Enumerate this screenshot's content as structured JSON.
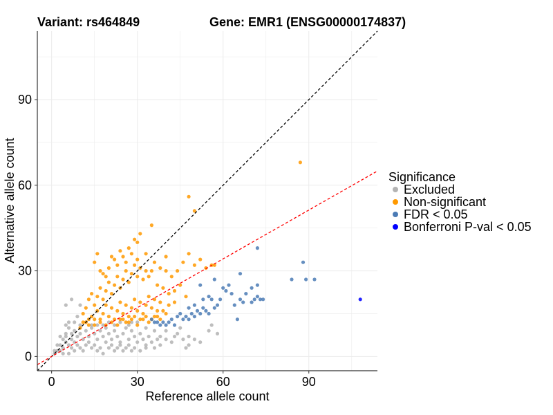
{
  "chart_data": {
    "type": "scatter",
    "title_left": "Variant: rs464849",
    "title_right": "Gene: EMR1 (ENSG00000174837)",
    "xlabel": "Reference allele count",
    "ylabel": "Alternative allele count",
    "xlim": [
      -5,
      114
    ],
    "ylim": [
      -5,
      114
    ],
    "xticks": [
      0,
      30,
      60,
      90
    ],
    "yticks": [
      0,
      30,
      60,
      90
    ],
    "grid": true,
    "legend": {
      "title": "Significance",
      "position": "right",
      "entries": [
        {
          "label": "Excluded",
          "color": "#b3b3b3"
        },
        {
          "label": "Non-significant",
          "color": "#ff9900"
        },
        {
          "label": "FDR < 0.05",
          "color": "#4b7bb5"
        },
        {
          "label": "Bonferroni P-val < 0.05",
          "color": "#0000ff"
        }
      ]
    },
    "reference_lines": [
      {
        "name": "identity",
        "slope": 1,
        "intercept": 0,
        "color": "#000000",
        "dash": true
      },
      {
        "name": "fit",
        "slope": 0.57,
        "intercept": 0,
        "color": "#ff0000",
        "dash": true
      }
    ],
    "series": [
      {
        "name": "Excluded",
        "color": "#b3b3b3",
        "points": [
          [
            2,
            2
          ],
          [
            3,
            4
          ],
          [
            4,
            3
          ],
          [
            5,
            5
          ],
          [
            6,
            4
          ],
          [
            5,
            7
          ],
          [
            7,
            6
          ],
          [
            8,
            9
          ],
          [
            6,
            10
          ],
          [
            5,
            8
          ],
          [
            8,
            5
          ],
          [
            9,
            7
          ],
          [
            10,
            8
          ],
          [
            11,
            6
          ],
          [
            12,
            9
          ],
          [
            13,
            7
          ],
          [
            14,
            10
          ],
          [
            15,
            8
          ],
          [
            16,
            6
          ],
          [
            17,
            9
          ],
          [
            18,
            7
          ],
          [
            19,
            10
          ],
          [
            20,
            8
          ],
          [
            21,
            6
          ],
          [
            22,
            9
          ],
          [
            23,
            7
          ],
          [
            24,
            5
          ],
          [
            25,
            8
          ],
          [
            26,
            10
          ],
          [
            27,
            6
          ],
          [
            28,
            9
          ],
          [
            29,
            7
          ],
          [
            30,
            5
          ],
          [
            31,
            8
          ],
          [
            32,
            6
          ],
          [
            33,
            4
          ],
          [
            34,
            7
          ],
          [
            35,
            5
          ],
          [
            36,
            3
          ],
          [
            37,
            6
          ],
          [
            38,
            4
          ],
          [
            40,
            6
          ],
          [
            42,
            5
          ],
          [
            44,
            8
          ],
          [
            46,
            6
          ],
          [
            48,
            4
          ],
          [
            50,
            6
          ],
          [
            52,
            5
          ],
          [
            12,
            4
          ],
          [
            14,
            3
          ],
          [
            16,
            2
          ],
          [
            18,
            1
          ],
          [
            20,
            3
          ],
          [
            22,
            2
          ],
          [
            24,
            4
          ],
          [
            26,
            3
          ],
          [
            28,
            2
          ],
          [
            10,
            3
          ],
          [
            8,
            2
          ],
          [
            6,
            1
          ],
          [
            4,
            1
          ],
          [
            3,
            2
          ],
          [
            7,
            3
          ],
          [
            11,
            2
          ],
          [
            13,
            5
          ],
          [
            15,
            4
          ],
          [
            17,
            3
          ],
          [
            19,
            5
          ],
          [
            21,
            4
          ],
          [
            23,
            3
          ],
          [
            25,
            2
          ],
          [
            27,
            4
          ],
          [
            29,
            3
          ],
          [
            31,
            2
          ],
          [
            33,
            3
          ],
          [
            9,
            4
          ],
          [
            7,
            8
          ],
          [
            5,
            11
          ],
          [
            6,
            12
          ],
          [
            5,
            18
          ],
          [
            7,
            20
          ],
          [
            10,
            18
          ],
          [
            9,
            14
          ],
          [
            8,
            12
          ],
          [
            4,
            6
          ],
          [
            3,
            7
          ],
          [
            2,
            4
          ],
          [
            1,
            2
          ],
          [
            1,
            1
          ],
          [
            12,
            12
          ],
          [
            14,
            11
          ],
          [
            18,
            11
          ],
          [
            20,
            12
          ],
          [
            24,
            12
          ],
          [
            27,
            11
          ],
          [
            30,
            12
          ],
          [
            10,
            11
          ],
          [
            16,
            11
          ],
          [
            22,
            11
          ],
          [
            28,
            12
          ],
          [
            33,
            10
          ],
          [
            40,
            9
          ],
          [
            43,
            7
          ],
          [
            47,
            3
          ],
          [
            55,
            9
          ],
          [
            56,
            11
          ],
          [
            58,
            8
          ],
          [
            48,
            7
          ],
          [
            45,
            10
          ],
          [
            36,
            9
          ],
          [
            38,
            7
          ]
        ]
      },
      {
        "name": "Non-significant",
        "color": "#ff9900",
        "points": [
          [
            10,
            10
          ],
          [
            12,
            12
          ],
          [
            11,
            15
          ],
          [
            13,
            11
          ],
          [
            14,
            14
          ],
          [
            15,
            13
          ],
          [
            16,
            16
          ],
          [
            17,
            12
          ],
          [
            18,
            15
          ],
          [
            19,
            18
          ],
          [
            20,
            14
          ],
          [
            21,
            17
          ],
          [
            22,
            13
          ],
          [
            23,
            16
          ],
          [
            24,
            19
          ],
          [
            25,
            15
          ],
          [
            26,
            18
          ],
          [
            27,
            14
          ],
          [
            28,
            17
          ],
          [
            29,
            20
          ],
          [
            30,
            16
          ],
          [
            31,
            19
          ],
          [
            32,
            15
          ],
          [
            33,
            18
          ],
          [
            34,
            21
          ],
          [
            35,
            17
          ],
          [
            36,
            20
          ],
          [
            37,
            16
          ],
          [
            38,
            19
          ],
          [
            12,
            17
          ],
          [
            13,
            20
          ],
          [
            14,
            22
          ],
          [
            15,
            18
          ],
          [
            16,
            21
          ],
          [
            17,
            24
          ],
          [
            18,
            20
          ],
          [
            19,
            23
          ],
          [
            20,
            26
          ],
          [
            21,
            22
          ],
          [
            22,
            25
          ],
          [
            23,
            28
          ],
          [
            24,
            24
          ],
          [
            25,
            27
          ],
          [
            26,
            30
          ],
          [
            27,
            26
          ],
          [
            28,
            29
          ],
          [
            29,
            32
          ],
          [
            30,
            28
          ],
          [
            31,
            31
          ],
          [
            32,
            27
          ],
          [
            33,
            30
          ],
          [
            20,
            31
          ],
          [
            22,
            34
          ],
          [
            24,
            37
          ],
          [
            26,
            33
          ],
          [
            28,
            36
          ],
          [
            30,
            34
          ],
          [
            30,
            40
          ],
          [
            33,
            36
          ],
          [
            35,
            30
          ],
          [
            36,
            33
          ],
          [
            38,
            31
          ],
          [
            40,
            30
          ],
          [
            40,
            35
          ],
          [
            42,
            28
          ],
          [
            44,
            30
          ],
          [
            46,
            33
          ],
          [
            48,
            36
          ],
          [
            50,
            32
          ],
          [
            52,
            34
          ],
          [
            54,
            31
          ],
          [
            56,
            32
          ],
          [
            57,
            32
          ],
          [
            48,
            56
          ],
          [
            50,
            51
          ],
          [
            87,
            68
          ],
          [
            15,
            33
          ],
          [
            17,
            30
          ],
          [
            19,
            28
          ],
          [
            21,
            35
          ],
          [
            23,
            32
          ],
          [
            16,
            36
          ],
          [
            18,
            29
          ],
          [
            25,
            35
          ],
          [
            27,
            38
          ],
          [
            29,
            41
          ],
          [
            31,
            43
          ],
          [
            34,
            28
          ],
          [
            37,
            25
          ],
          [
            39,
            24
          ],
          [
            41,
            22
          ],
          [
            43,
            23
          ],
          [
            45,
            25
          ],
          [
            47,
            21
          ],
          [
            35,
            46
          ],
          [
            24,
            13
          ],
          [
            26,
            12
          ],
          [
            28,
            13
          ],
          [
            30,
            11
          ],
          [
            32,
            13
          ],
          [
            34,
            12
          ],
          [
            36,
            14
          ],
          [
            38,
            13
          ],
          [
            40,
            15
          ],
          [
            11,
            12
          ],
          [
            13,
            13
          ],
          [
            15,
            11
          ],
          [
            17,
            13
          ],
          [
            19,
            11
          ],
          [
            21,
            12
          ],
          [
            23,
            11
          ],
          [
            25,
            13
          ],
          [
            27,
            12
          ],
          [
            29,
            14
          ],
          [
            31,
            13
          ],
          [
            33,
            14
          ],
          [
            35,
            13
          ],
          [
            37,
            14
          ],
          [
            39,
            16
          ],
          [
            41,
            18
          ],
          [
            43,
            19
          ]
        ]
      },
      {
        "name": "FDR < 0.05",
        "color": "#4b7bb5",
        "points": [
          [
            35,
            13
          ],
          [
            36,
            12
          ],
          [
            37,
            12
          ],
          [
            38,
            11
          ],
          [
            39,
            12
          ],
          [
            40,
            11
          ],
          [
            41,
            12
          ],
          [
            42,
            13
          ],
          [
            43,
            11
          ],
          [
            44,
            14
          ],
          [
            45,
            15
          ],
          [
            46,
            13
          ],
          [
            47,
            14
          ],
          [
            48,
            13
          ],
          [
            49,
            15
          ],
          [
            50,
            14
          ],
          [
            51,
            16
          ],
          [
            52,
            15
          ],
          [
            53,
            17
          ],
          [
            54,
            16
          ],
          [
            55,
            15
          ],
          [
            56,
            20
          ],
          [
            57,
            17
          ],
          [
            58,
            18
          ],
          [
            59,
            20
          ],
          [
            60,
            24
          ],
          [
            61,
            23
          ],
          [
            63,
            22
          ],
          [
            64,
            18
          ],
          [
            65,
            13
          ],
          [
            66,
            20
          ],
          [
            67,
            19
          ],
          [
            68,
            22
          ],
          [
            70,
            24
          ],
          [
            71,
            20
          ],
          [
            72,
            21
          ],
          [
            73,
            20
          ],
          [
            70,
            19
          ],
          [
            72,
            25
          ],
          [
            74,
            20
          ],
          [
            72,
            38
          ],
          [
            66,
            29
          ],
          [
            84,
            27
          ],
          [
            89,
            27
          ],
          [
            92,
            27
          ],
          [
            88,
            33
          ],
          [
            57,
            27
          ],
          [
            55,
            21
          ],
          [
            53,
            20
          ],
          [
            52,
            25
          ],
          [
            50,
            18
          ],
          [
            48,
            17
          ],
          [
            62,
            25
          ]
        ]
      },
      {
        "name": "Bonferroni P-val < 0.05",
        "color": "#0000ff",
        "points": [
          [
            108,
            20
          ]
        ]
      }
    ]
  }
}
